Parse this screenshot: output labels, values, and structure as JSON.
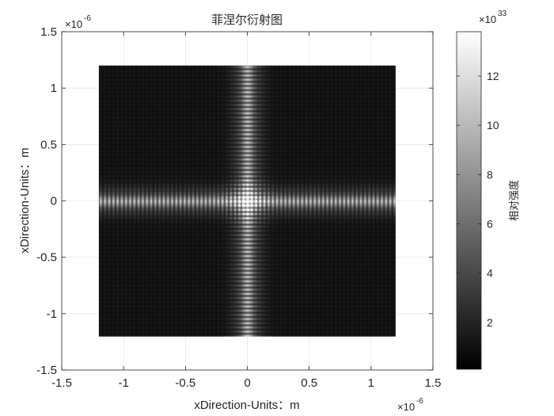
{
  "chart_data": {
    "type": "heatmap",
    "title": "菲涅尔衍射图",
    "xlabel": "xDirection-Units：m",
    "ylabel": "xDirection-Units：m",
    "x_exponent_label": "×10",
    "x_exponent": "-6",
    "y_exponent_label": "×10",
    "y_exponent": "-6",
    "xlim": [
      -1.5e-06,
      1.5e-06
    ],
    "ylim": [
      -1.5e-06,
      1.5e-06
    ],
    "xticks": [
      {
        "value": -1.5,
        "label": "-1.5"
      },
      {
        "value": -1,
        "label": "-1"
      },
      {
        "value": -0.5,
        "label": "-0.5"
      },
      {
        "value": 0,
        "label": "0"
      },
      {
        "value": 0.5,
        "label": "0.5"
      },
      {
        "value": 1,
        "label": "1"
      },
      {
        "value": 1.5,
        "label": "1.5"
      }
    ],
    "yticks": [
      {
        "value": -1.5,
        "label": "-1.5"
      },
      {
        "value": -1,
        "label": "-1"
      },
      {
        "value": -0.5,
        "label": "-0.5"
      },
      {
        "value": 0,
        "label": "0"
      },
      {
        "value": 0.5,
        "label": "0.5"
      },
      {
        "value": 1,
        "label": "1"
      },
      {
        "value": 1.5,
        "label": "1.5"
      }
    ],
    "grid": true,
    "image_extent": {
      "x": [
        -1.2e-06,
        1.2e-06
      ],
      "y": [
        -1.2e-06,
        1.2e-06
      ]
    },
    "colormap": "gray",
    "colorbar": {
      "label": "相对强度",
      "exponent_label": "×10",
      "exponent": "33",
      "clim": [
        0.1,
        13.8
      ],
      "ticks": [
        {
          "value": 2,
          "label": "2"
        },
        {
          "value": 4,
          "label": "4"
        },
        {
          "value": 6,
          "label": "6"
        },
        {
          "value": 8,
          "label": "8"
        },
        {
          "value": 10,
          "label": "10"
        },
        {
          "value": 12,
          "label": "12"
        }
      ]
    },
    "colors": {
      "axis": "#262626",
      "grid": "#e6e6e6",
      "background": "#ffffff"
    }
  }
}
